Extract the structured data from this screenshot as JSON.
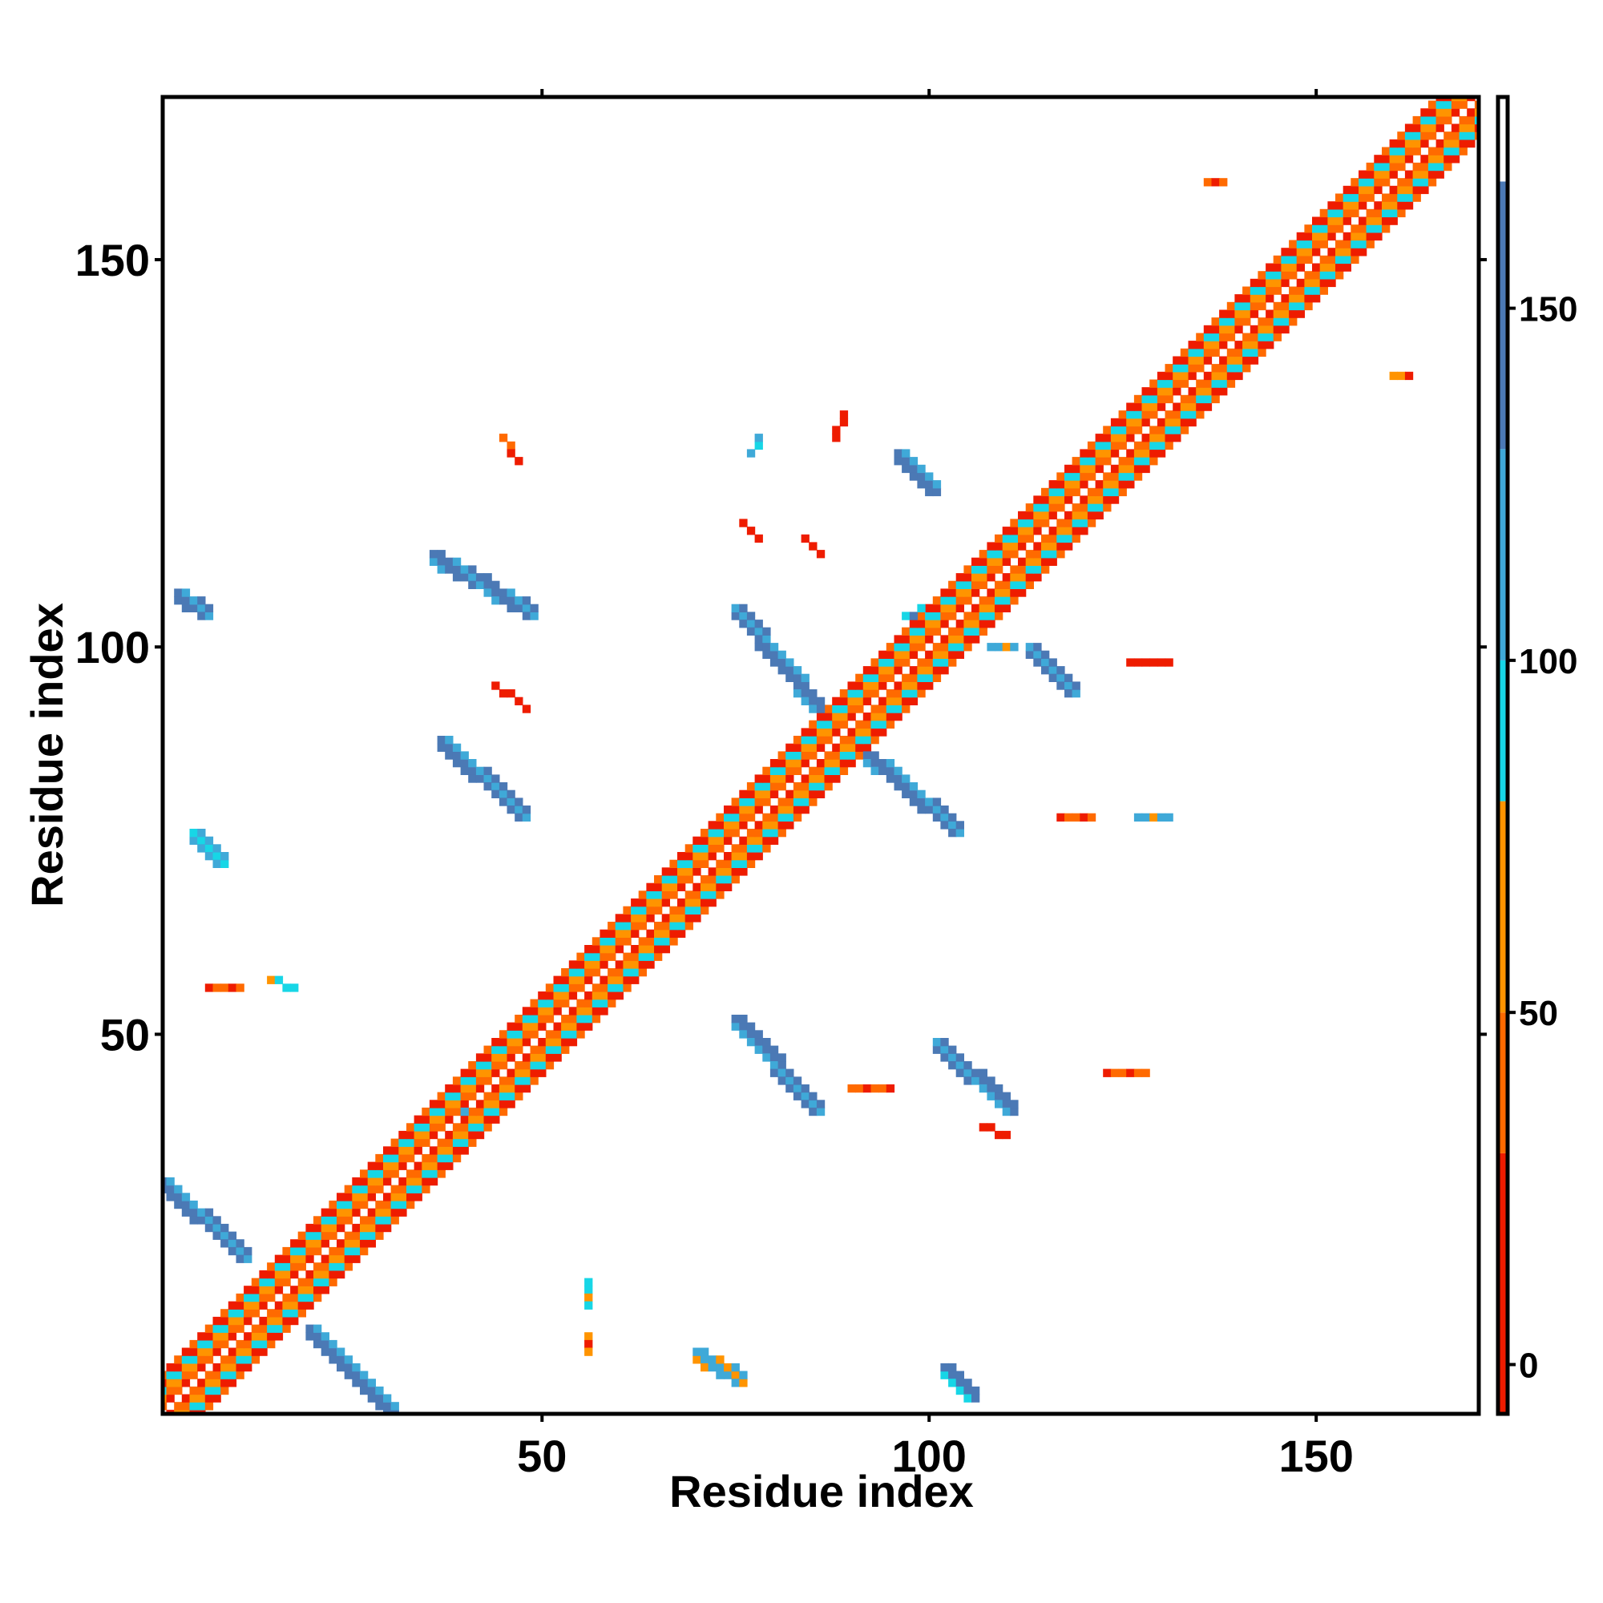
{
  "chart_data": {
    "type": "heatmap",
    "xlabel": "Residue index",
    "ylabel": "Residue index",
    "xlim": [
      1,
      171
    ],
    "ylim": [
      1,
      171
    ],
    "x_ticks": [
      50,
      100,
      150
    ],
    "y_ticks": [
      50,
      100,
      150
    ],
    "x_tick_labels": [
      "50",
      "100",
      "150"
    ],
    "y_tick_labels": [
      "50",
      "100",
      "150"
    ],
    "grid": false,
    "colorbar": {
      "min": -7,
      "max": 180,
      "ticks": [
        0,
        50,
        100,
        150
      ],
      "tick_labels": [
        "0",
        "50",
        "100",
        "150"
      ],
      "bands": [
        {
          "from": -7,
          "to": 30,
          "color": "#ee1c00"
        },
        {
          "from": 30,
          "to": 50,
          "color": "#ff6a00"
        },
        {
          "from": 50,
          "to": 80,
          "color": "#ff9400"
        },
        {
          "from": 80,
          "to": 100,
          "color": "#17d6e6"
        },
        {
          "from": 100,
          "to": 130,
          "color": "#3fa9d8"
        },
        {
          "from": 130,
          "to": 168,
          "color": "#4b79b5"
        },
        {
          "from": 168,
          "to": 180,
          "color": "#ffffff"
        }
      ]
    },
    "segments": [
      {
        "x0": 1,
        "y0": 1,
        "x1": 171,
        "y1": 171,
        "w": 5,
        "v": 40
      },
      {
        "x0": 1,
        "y0": 30,
        "x1": 11,
        "y1": 21,
        "w": 2,
        "v": 150
      },
      {
        "x0": 20,
        "y0": 11,
        "x1": 30,
        "y1": 1,
        "w": 2,
        "v": 150
      },
      {
        "x0": 3,
        "y0": 106,
        "x1": 6,
        "y1": 104,
        "w": 2,
        "v": 145
      },
      {
        "x0": 5,
        "y0": 75,
        "x1": 8,
        "y1": 72,
        "w": 2,
        "v": 120
      },
      {
        "x0": 36,
        "y0": 111,
        "x1": 48,
        "y1": 104,
        "w": 2,
        "v": 140
      },
      {
        "x0": 37,
        "y0": 87,
        "x1": 47,
        "y1": 78,
        "w": 2,
        "v": 140
      },
      {
        "x0": 75,
        "y0": 51,
        "x1": 85,
        "y1": 40,
        "w": 2,
        "v": 140
      },
      {
        "x0": 75,
        "y0": 104,
        "x1": 85,
        "y1": 92,
        "w": 2,
        "v": 140
      },
      {
        "x0": 90,
        "y0": 87,
        "x1": 103,
        "y1": 76,
        "w": 2,
        "v": 140
      },
      {
        "x0": 96,
        "y0": 124,
        "x1": 100,
        "y1": 120,
        "w": 2,
        "v": 140
      },
      {
        "x0": 101,
        "y0": 48,
        "x1": 110,
        "y1": 40,
        "w": 2,
        "v": 140
      },
      {
        "x0": 113,
        "y0": 99,
        "x1": 118,
        "y1": 94,
        "w": 2,
        "v": 140
      },
      {
        "x0": 70,
        "y0": 8,
        "x1": 75,
        "y1": 5,
        "w": 2,
        "v": 110
      },
      {
        "x0": 102,
        "y0": 6,
        "x1": 105,
        "y1": 3,
        "w": 2,
        "v": 130
      },
      {
        "x0": 56,
        "y0": 18,
        "x1": 56,
        "y1": 15,
        "w": 1,
        "v": 95
      },
      {
        "x0": 56,
        "y0": 11,
        "x1": 56,
        "y1": 9,
        "w": 1,
        "v": 55
      },
      {
        "x0": 45,
        "y0": 127,
        "x1": 47,
        "y1": 124,
        "w": 1,
        "v": 40
      },
      {
        "x0": 44,
        "y0": 95,
        "x1": 48,
        "y1": 92,
        "w": 1,
        "v": 10
      },
      {
        "x0": 35,
        "y0": 40,
        "x1": 41,
        "y1": 40,
        "w": 1,
        "v": 100
      },
      {
        "x0": 7,
        "y0": 56,
        "x1": 11,
        "y1": 56,
        "w": 1,
        "v": 30
      },
      {
        "x0": 15,
        "y0": 57,
        "x1": 18,
        "y1": 56,
        "w": 1,
        "v": 95
      },
      {
        "x0": 90,
        "y0": 43,
        "x1": 95,
        "y1": 43,
        "w": 1,
        "v": 30
      },
      {
        "x0": 123,
        "y0": 45,
        "x1": 128,
        "y1": 45,
        "w": 1,
        "v": 45
      },
      {
        "x0": 107,
        "y0": 38,
        "x1": 110,
        "y1": 37,
        "w": 1,
        "v": 20
      },
      {
        "x0": 117,
        "y0": 78,
        "x1": 121,
        "y1": 78,
        "w": 1,
        "v": 40
      },
      {
        "x0": 127,
        "y0": 78,
        "x1": 131,
        "y1": 78,
        "w": 1,
        "v": 100
      },
      {
        "x0": 126,
        "y0": 98,
        "x1": 131,
        "y1": 98,
        "w": 1,
        "v": 10
      },
      {
        "x0": 77,
        "y0": 125,
        "x1": 78,
        "y1": 127,
        "w": 1,
        "v": 120
      },
      {
        "x0": 76,
        "y0": 116,
        "x1": 78,
        "y1": 114,
        "w": 1,
        "v": 45
      },
      {
        "x0": 97,
        "y0": 104,
        "x1": 101,
        "y1": 105,
        "w": 1,
        "v": 130
      },
      {
        "x0": 108,
        "y0": 100,
        "x1": 111,
        "y1": 100,
        "w": 1,
        "v": 110
      },
      {
        "x0": 88,
        "y0": 127,
        "x1": 89,
        "y1": 130,
        "w": 1,
        "v": 20
      },
      {
        "x0": 84,
        "y0": 114,
        "x1": 86,
        "y1": 112,
        "w": 1,
        "v": 25
      },
      {
        "x0": 136,
        "y0": 160,
        "x1": 138,
        "y1": 160,
        "w": 1,
        "v": 30
      },
      {
        "x0": 160,
        "y0": 135,
        "x1": 162,
        "y1": 135,
        "w": 1,
        "v": 60
      }
    ]
  }
}
